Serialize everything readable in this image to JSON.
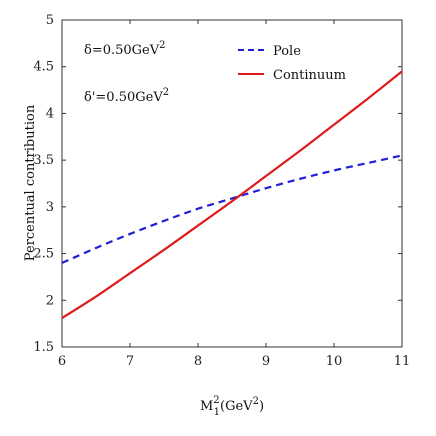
{
  "chart_data": {
    "type": "line",
    "xlabel_main": "M",
    "xlabel_sup": "2",
    "xlabel_sub": "1",
    "xlabel_rest": "(GeV",
    "xlabel_rest_sup": "2",
    "xlabel_close": ")",
    "ylabel": "Percentual contribution",
    "xlim": [
      6,
      11
    ],
    "ylim": [
      1.5,
      5
    ],
    "xticks": [
      "6",
      "7",
      "8",
      "9",
      "10",
      "11"
    ],
    "yticks": [
      "1.5",
      "2",
      "2.5",
      "3",
      "3.5",
      "4",
      "4.5",
      "5"
    ],
    "grid": false,
    "legend_position": "top-right",
    "annotations": [
      {
        "text": "δ=0.50GeV",
        "sup": "2"
      },
      {
        "text": "δ'=0.50GeV",
        "sup": "2"
      }
    ],
    "series": [
      {
        "name": "Pole",
        "color": "#1f1fd6",
        "style": "dashed",
        "x": [
          6,
          6.5,
          7,
          7.5,
          8,
          8.5,
          9,
          9.5,
          10,
          10.5,
          11
        ],
        "y": [
          2.4,
          2.56,
          2.71,
          2.85,
          2.98,
          3.09,
          3.2,
          3.3,
          3.39,
          3.47,
          3.55
        ]
      },
      {
        "name": "Continuum",
        "color": "#e01b1b",
        "style": "solid",
        "x": [
          6,
          6.5,
          7,
          7.5,
          8,
          8.5,
          9,
          9.5,
          10,
          10.5,
          11
        ],
        "y": [
          1.81,
          2.04,
          2.29,
          2.54,
          2.8,
          3.06,
          3.33,
          3.6,
          3.88,
          4.16,
          4.45
        ]
      }
    ]
  }
}
